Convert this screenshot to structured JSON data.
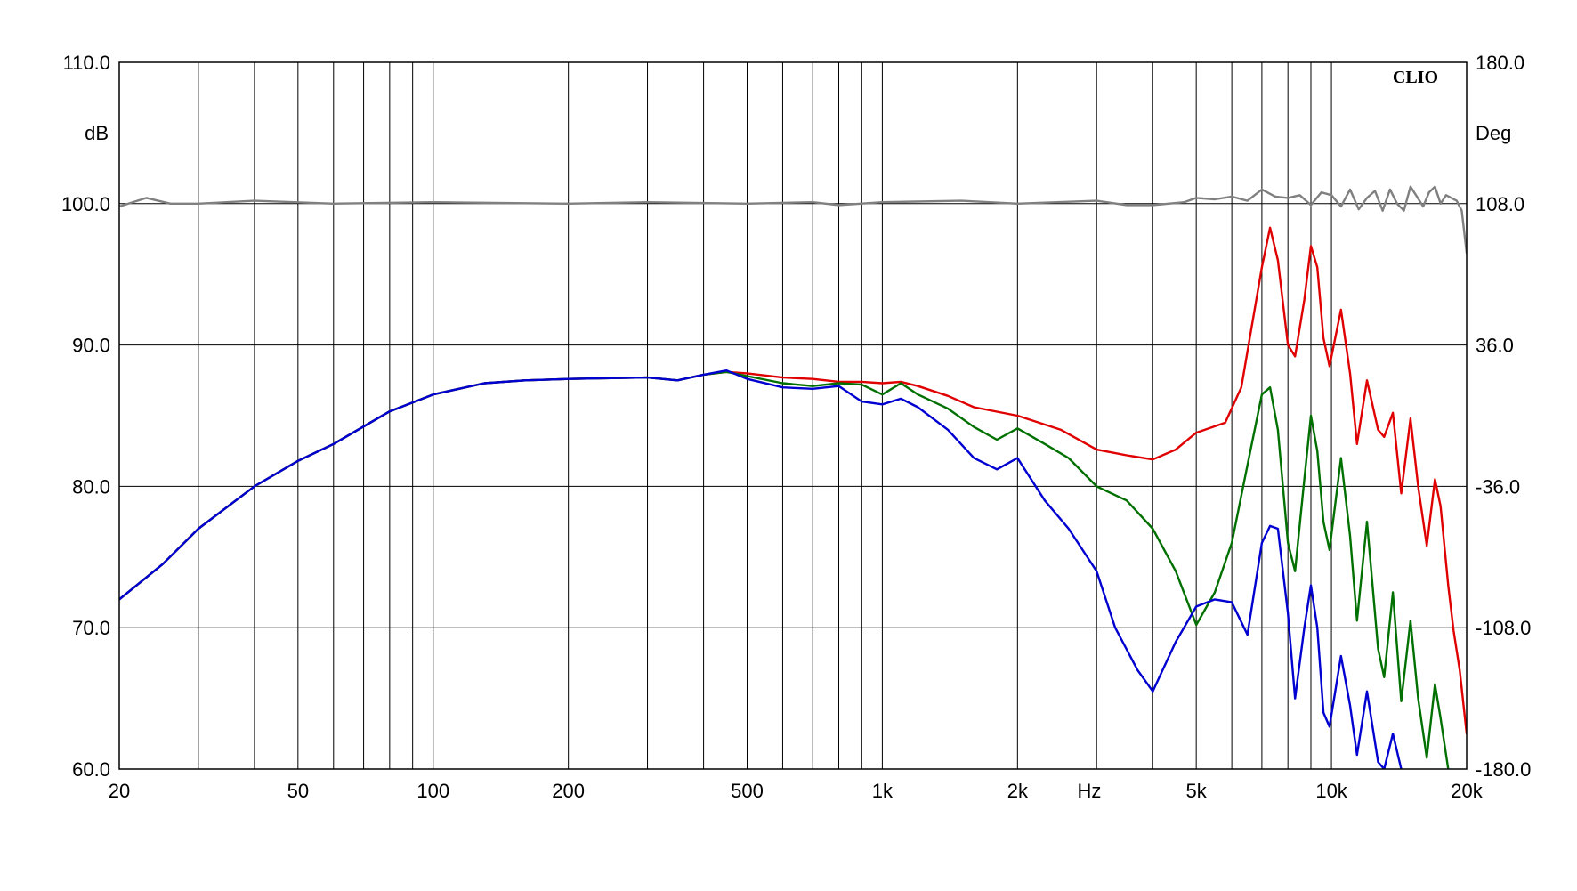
{
  "chart_data": {
    "type": "line",
    "brand": "CLIO",
    "xlabel": "Hz",
    "ylabel_left": "dB",
    "ylabel_right": "Deg",
    "x_scale": "log",
    "xlim": [
      20,
      20000
    ],
    "ylim_left": [
      60,
      110
    ],
    "ylim_right": [
      -180,
      180
    ],
    "grid": true,
    "x_tick_labels": [
      {
        "value": 20,
        "label": "20"
      },
      {
        "value": 50,
        "label": "50"
      },
      {
        "value": 100,
        "label": "100"
      },
      {
        "value": 200,
        "label": "200"
      },
      {
        "value": 500,
        "label": "500"
      },
      {
        "value": 1000,
        "label": "1k"
      },
      {
        "value": 2000,
        "label": "2k"
      },
      {
        "value": 5000,
        "label": "5k"
      },
      {
        "value": 10000,
        "label": "10k"
      },
      {
        "value": 20000,
        "label": "20k"
      }
    ],
    "y_left_ticks": [
      {
        "value": 110,
        "label": "110.0"
      },
      {
        "value": 100,
        "label": "100.0"
      },
      {
        "value": 90,
        "label": "90.0"
      },
      {
        "value": 80,
        "label": "80.0"
      },
      {
        "value": 70,
        "label": "70.0"
      },
      {
        "value": 60,
        "label": "60.0"
      }
    ],
    "y_right_ticks": [
      {
        "value": 180,
        "label": "180.0"
      },
      {
        "value": 108,
        "label": "108.0"
      },
      {
        "value": 36,
        "label": "36.0"
      },
      {
        "value": -36,
        "label": "-36.0"
      },
      {
        "value": -108,
        "label": "-108.0"
      },
      {
        "value": -180,
        "label": "-180.0"
      }
    ],
    "series": [
      {
        "color": "#808080",
        "axis": "left",
        "points": [
          [
            20,
            99.8
          ],
          [
            23,
            100.4
          ],
          [
            26,
            100.0
          ],
          [
            30,
            100.0
          ],
          [
            40,
            100.2
          ],
          [
            60,
            100.0
          ],
          [
            100,
            100.1
          ],
          [
            200,
            100.0
          ],
          [
            300,
            100.1
          ],
          [
            500,
            100.0
          ],
          [
            700,
            100.1
          ],
          [
            800,
            99.9
          ],
          [
            1000,
            100.1
          ],
          [
            1500,
            100.2
          ],
          [
            2000,
            100.0
          ],
          [
            3000,
            100.2
          ],
          [
            3500,
            99.9
          ],
          [
            4000,
            99.9
          ],
          [
            4700,
            100.1
          ],
          [
            5000,
            100.4
          ],
          [
            5500,
            100.3
          ],
          [
            6000,
            100.5
          ],
          [
            6500,
            100.2
          ],
          [
            7000,
            101.0
          ],
          [
            7500,
            100.5
          ],
          [
            8000,
            100.4
          ],
          [
            8500,
            100.6
          ],
          [
            9000,
            99.9
          ],
          [
            9500,
            100.8
          ],
          [
            10000,
            100.6
          ],
          [
            10500,
            99.8
          ],
          [
            11000,
            101.0
          ],
          [
            11500,
            99.6
          ],
          [
            12000,
            100.4
          ],
          [
            12500,
            100.9
          ],
          [
            13000,
            99.5
          ],
          [
            13500,
            101.0
          ],
          [
            14000,
            100.0
          ],
          [
            14500,
            99.5
          ],
          [
            15000,
            101.2
          ],
          [
            15500,
            100.5
          ],
          [
            16000,
            99.8
          ],
          [
            16500,
            100.8
          ],
          [
            17000,
            101.2
          ],
          [
            17500,
            100.0
          ],
          [
            18000,
            100.6
          ],
          [
            18500,
            100.4
          ],
          [
            19000,
            100.2
          ],
          [
            19500,
            99.5
          ],
          [
            20000,
            96.5
          ]
        ]
      },
      {
        "color": "#e00000",
        "axis": "left",
        "points": [
          [
            20,
            72.0
          ],
          [
            25,
            74.5
          ],
          [
            30,
            77.0
          ],
          [
            40,
            80.0
          ],
          [
            50,
            81.8
          ],
          [
            60,
            83.0
          ],
          [
            80,
            85.3
          ],
          [
            100,
            86.5
          ],
          [
            130,
            87.3
          ],
          [
            160,
            87.5
          ],
          [
            200,
            87.6
          ],
          [
            300,
            87.7
          ],
          [
            350,
            87.5
          ],
          [
            400,
            87.9
          ],
          [
            450,
            88.1
          ],
          [
            500,
            88.0
          ],
          [
            600,
            87.7
          ],
          [
            700,
            87.6
          ],
          [
            800,
            87.4
          ],
          [
            900,
            87.4
          ],
          [
            1000,
            87.3
          ],
          [
            1100,
            87.4
          ],
          [
            1200,
            87.1
          ],
          [
            1400,
            86.4
          ],
          [
            1600,
            85.6
          ],
          [
            2000,
            85.0
          ],
          [
            2500,
            84.0
          ],
          [
            3000,
            82.6
          ],
          [
            3500,
            82.2
          ],
          [
            4000,
            81.9
          ],
          [
            4500,
            82.6
          ],
          [
            5000,
            83.8
          ],
          [
            5800,
            84.5
          ],
          [
            6300,
            87.0
          ],
          [
            7000,
            95.5
          ],
          [
            7300,
            98.3
          ],
          [
            7600,
            96.0
          ],
          [
            8000,
            90.0
          ],
          [
            8300,
            89.2
          ],
          [
            8700,
            93.2
          ],
          [
            9000,
            97.0
          ],
          [
            9300,
            95.5
          ],
          [
            9600,
            90.5
          ],
          [
            9900,
            88.5
          ],
          [
            10500,
            92.5
          ],
          [
            11000,
            88.0
          ],
          [
            11400,
            83.0
          ],
          [
            12000,
            87.5
          ],
          [
            12700,
            84.0
          ],
          [
            13100,
            83.5
          ],
          [
            13700,
            85.2
          ],
          [
            14300,
            79.5
          ],
          [
            15000,
            84.8
          ],
          [
            15600,
            80.0
          ],
          [
            16300,
            75.8
          ],
          [
            17000,
            80.5
          ],
          [
            17500,
            78.6
          ],
          [
            18200,
            73.0
          ],
          [
            18700,
            69.8
          ],
          [
            19300,
            67.0
          ],
          [
            20000,
            62.5
          ]
        ]
      },
      {
        "color": "#007000",
        "axis": "left",
        "points": [
          [
            20,
            72.0
          ],
          [
            25,
            74.5
          ],
          [
            30,
            77.0
          ],
          [
            40,
            80.0
          ],
          [
            50,
            81.8
          ],
          [
            60,
            83.0
          ],
          [
            80,
            85.3
          ],
          [
            100,
            86.5
          ],
          [
            130,
            87.3
          ],
          [
            160,
            87.5
          ],
          [
            200,
            87.6
          ],
          [
            300,
            87.7
          ],
          [
            350,
            87.5
          ],
          [
            400,
            87.9
          ],
          [
            450,
            88.1
          ],
          [
            500,
            87.8
          ],
          [
            600,
            87.3
          ],
          [
            700,
            87.1
          ],
          [
            800,
            87.3
          ],
          [
            900,
            87.2
          ],
          [
            1000,
            86.5
          ],
          [
            1100,
            87.3
          ],
          [
            1200,
            86.5
          ],
          [
            1400,
            85.5
          ],
          [
            1600,
            84.2
          ],
          [
            1800,
            83.3
          ],
          [
            2000,
            84.1
          ],
          [
            2300,
            83.0
          ],
          [
            2600,
            82.0
          ],
          [
            3000,
            80.0
          ],
          [
            3500,
            79.0
          ],
          [
            4000,
            77.0
          ],
          [
            4500,
            74.0
          ],
          [
            5000,
            70.2
          ],
          [
            5500,
            72.5
          ],
          [
            6000,
            76.0
          ],
          [
            6500,
            81.5
          ],
          [
            7000,
            86.5
          ],
          [
            7300,
            87.0
          ],
          [
            7600,
            84.0
          ],
          [
            8000,
            76.0
          ],
          [
            8300,
            74.0
          ],
          [
            8700,
            80.5
          ],
          [
            9000,
            85.0
          ],
          [
            9300,
            82.5
          ],
          [
            9600,
            77.5
          ],
          [
            9900,
            75.5
          ],
          [
            10500,
            82.0
          ],
          [
            11000,
            76.5
          ],
          [
            11400,
            70.5
          ],
          [
            12000,
            77.5
          ],
          [
            12700,
            68.5
          ],
          [
            13100,
            66.5
          ],
          [
            13700,
            72.5
          ],
          [
            14300,
            64.8
          ],
          [
            15000,
            70.5
          ],
          [
            15600,
            65.0
          ],
          [
            16300,
            60.8
          ],
          [
            17000,
            66.0
          ],
          [
            17500,
            63.6
          ],
          [
            18200,
            60.0
          ]
        ]
      },
      {
        "color": "#0000d0",
        "axis": "left",
        "points": [
          [
            20,
            72.0
          ],
          [
            25,
            74.5
          ],
          [
            30,
            77.0
          ],
          [
            40,
            80.0
          ],
          [
            50,
            81.8
          ],
          [
            60,
            83.0
          ],
          [
            80,
            85.3
          ],
          [
            100,
            86.5
          ],
          [
            130,
            87.3
          ],
          [
            160,
            87.5
          ],
          [
            200,
            87.6
          ],
          [
            300,
            87.7
          ],
          [
            350,
            87.5
          ],
          [
            400,
            87.9
          ],
          [
            450,
            88.2
          ],
          [
            500,
            87.6
          ],
          [
            600,
            87.0
          ],
          [
            700,
            86.9
          ],
          [
            800,
            87.1
          ],
          [
            900,
            86.0
          ],
          [
            1000,
            85.8
          ],
          [
            1100,
            86.2
          ],
          [
            1200,
            85.6
          ],
          [
            1400,
            84.0
          ],
          [
            1600,
            82.0
          ],
          [
            1800,
            81.2
          ],
          [
            2000,
            82.0
          ],
          [
            2300,
            79.0
          ],
          [
            2600,
            77.0
          ],
          [
            3000,
            74.0
          ],
          [
            3300,
            70.0
          ],
          [
            3700,
            67.0
          ],
          [
            4000,
            65.5
          ],
          [
            4500,
            69.0
          ],
          [
            5000,
            71.5
          ],
          [
            5500,
            72.0
          ],
          [
            6000,
            71.8
          ],
          [
            6500,
            69.5
          ],
          [
            7000,
            76.0
          ],
          [
            7300,
            77.2
          ],
          [
            7600,
            77.0
          ],
          [
            8000,
            71.0
          ],
          [
            8300,
            65.0
          ],
          [
            8700,
            70.0
          ],
          [
            9000,
            73.0
          ],
          [
            9300,
            70.0
          ],
          [
            9600,
            64.0
          ],
          [
            9900,
            63.0
          ],
          [
            10500,
            68.0
          ],
          [
            11000,
            64.5
          ],
          [
            11400,
            61.0
          ],
          [
            12000,
            65.5
          ],
          [
            12700,
            60.5
          ],
          [
            13100,
            60.0
          ],
          [
            13700,
            62.5
          ],
          [
            14300,
            60.0
          ]
        ]
      }
    ]
  }
}
